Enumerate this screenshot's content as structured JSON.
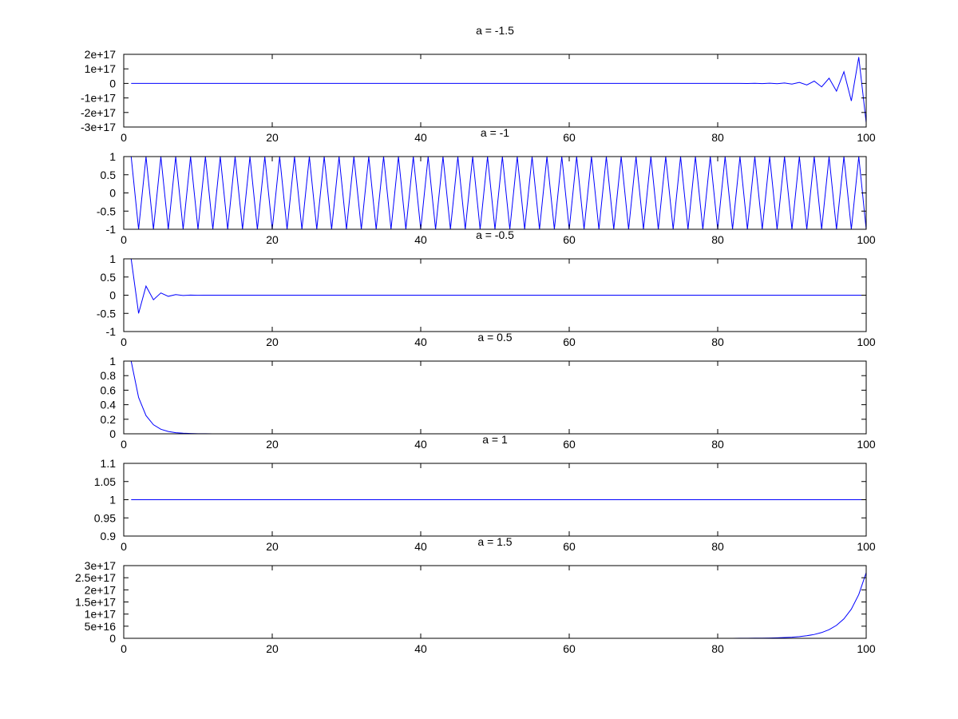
{
  "figure": {
    "background": "#ffffff"
  },
  "chart_data": [
    {
      "type": "line",
      "title": "a = -1.5",
      "a": -1.5,
      "x": "n = 1..100",
      "xlim": [
        0,
        100
      ],
      "xticks": [
        0,
        20,
        40,
        60,
        80,
        100
      ],
      "xtick_labels": [
        "0",
        "20",
        "40",
        "60",
        "80",
        "100"
      ],
      "ylim": [
        -3e+17,
        2e+17
      ],
      "yticks": [
        -3e+17,
        -2e+17,
        -1e+17,
        0,
        1e+17,
        2e+17
      ],
      "ytick_labels": [
        "-3e+17",
        "-2e+17",
        "-1e+17",
        "0",
        "1e+17",
        "2e+17"
      ],
      "series": [
        {
          "color": "#0000ff",
          "formula": "y = a^(n-1)"
        }
      ],
      "grid": false
    },
    {
      "type": "line",
      "title": "a = -1",
      "a": -1,
      "xlim": [
        0,
        100
      ],
      "xticks": [
        0,
        20,
        40,
        60,
        80,
        100
      ],
      "xtick_labels": [
        "0",
        "20",
        "40",
        "60",
        "80",
        "100"
      ],
      "ylim": [
        -1,
        1
      ],
      "yticks": [
        -1,
        -0.5,
        0,
        0.5,
        1
      ],
      "ytick_labels": [
        "-1",
        "-0.5",
        "0",
        "0.5",
        "1"
      ],
      "series": [
        {
          "color": "#0000ff",
          "formula": "y = a^(n-1)"
        }
      ],
      "grid": false
    },
    {
      "type": "line",
      "title": "a = -0.5",
      "a": -0.5,
      "xlim": [
        0,
        100
      ],
      "xticks": [
        0,
        20,
        40,
        60,
        80,
        100
      ],
      "xtick_labels": [
        "0",
        "20",
        "40",
        "60",
        "80",
        "100"
      ],
      "ylim": [
        -1,
        1
      ],
      "yticks": [
        -1,
        -0.5,
        0,
        0.5,
        1
      ],
      "ytick_labels": [
        "-1",
        "-0.5",
        "0",
        "0.5",
        "1"
      ],
      "series": [
        {
          "color": "#0000ff",
          "formula": "y = a^(n-1)"
        }
      ],
      "grid": false
    },
    {
      "type": "line",
      "title": "a = 0.5",
      "a": 0.5,
      "xlim": [
        0,
        100
      ],
      "xticks": [
        0,
        20,
        40,
        60,
        80,
        100
      ],
      "xtick_labels": [
        "0",
        "20",
        "40",
        "60",
        "80",
        "100"
      ],
      "ylim": [
        0,
        1
      ],
      "yticks": [
        0,
        0.2,
        0.4,
        0.6,
        0.8,
        1
      ],
      "ytick_labels": [
        "0",
        "0.2",
        "0.4",
        "0.6",
        "0.8",
        "1"
      ],
      "series": [
        {
          "color": "#0000ff",
          "formula": "y = a^(n-1)"
        }
      ],
      "grid": false
    },
    {
      "type": "line",
      "title": "a = 1",
      "a": 1,
      "xlim": [
        0,
        100
      ],
      "xticks": [
        0,
        20,
        40,
        60,
        80,
        100
      ],
      "xtick_labels": [
        "0",
        "20",
        "40",
        "60",
        "80",
        "100"
      ],
      "ylim": [
        0.9,
        1.1
      ],
      "yticks": [
        0.9,
        0.95,
        1,
        1.05,
        1.1
      ],
      "ytick_labels": [
        "0.9",
        "0.95",
        "1",
        "1.05",
        "1.1"
      ],
      "series": [
        {
          "color": "#0000ff",
          "formula": "y = a^(n-1)"
        }
      ],
      "grid": false
    },
    {
      "type": "line",
      "title": "a = 1.5",
      "a": 1.5,
      "xlim": [
        0,
        100
      ],
      "xticks": [
        0,
        20,
        40,
        60,
        80,
        100
      ],
      "xtick_labels": [
        "0",
        "20",
        "40",
        "60",
        "80",
        "100"
      ],
      "ylim": [
        0,
        3e+17
      ],
      "yticks": [
        0,
        5e+16,
        1e+17,
        1.5e+17,
        2e+17,
        2.5e+17,
        3e+17
      ],
      "ytick_labels": [
        "0",
        "5e+16",
        "1e+17",
        "1.5e+17",
        "2e+17",
        "2.5e+17",
        "3e+17"
      ],
      "series": [
        {
          "color": "#0000ff",
          "formula": "y = a^(n-1)"
        }
      ],
      "grid": false
    }
  ]
}
